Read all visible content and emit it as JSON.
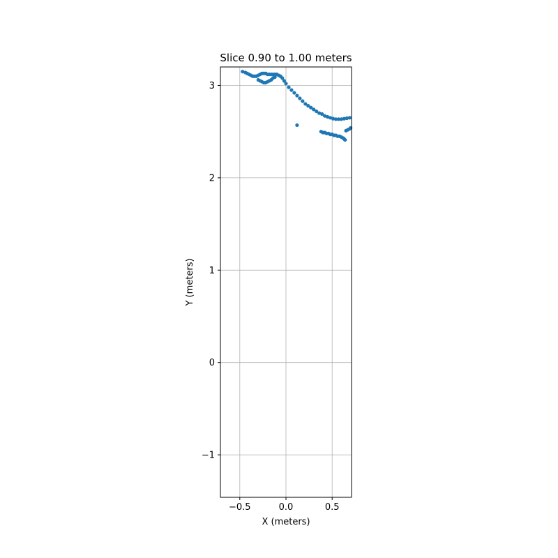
{
  "chart_data": {
    "type": "scatter",
    "title": "Slice 0.90 to 1.00 meters",
    "xlabel": "X (meters)",
    "ylabel": "Y (meters)",
    "xlim": [
      -0.71,
      0.71
    ],
    "ylim": [
      -1.46,
      3.2
    ],
    "xticks": [
      -0.5,
      0.0,
      0.5
    ],
    "xtick_labels": [
      "−0.5",
      "0.0",
      "0.5"
    ],
    "yticks": [
      -1,
      0,
      1,
      2,
      3
    ],
    "ytick_labels": [
      "−1",
      "0",
      "1",
      "2",
      "3"
    ],
    "grid": true,
    "legend": "none",
    "marker_color": "#1f77b4",
    "series": [
      {
        "values": [
          [
            -0.47,
            3.15
          ],
          [
            -0.44,
            3.14
          ],
          [
            -0.42,
            3.13
          ],
          [
            -0.4,
            3.12
          ],
          [
            -0.38,
            3.11
          ],
          [
            -0.36,
            3.1
          ],
          [
            -0.34,
            3.1
          ],
          [
            -0.32,
            3.1
          ],
          [
            -0.3,
            3.11
          ],
          [
            -0.28,
            3.12
          ],
          [
            -0.26,
            3.13
          ],
          [
            -0.24,
            3.13
          ],
          [
            -0.22,
            3.13
          ],
          [
            -0.2,
            3.12
          ],
          [
            -0.18,
            3.12
          ],
          [
            -0.16,
            3.12
          ],
          [
            -0.14,
            3.12
          ],
          [
            -0.12,
            3.12
          ],
          [
            -0.1,
            3.12
          ],
          [
            -0.08,
            3.11
          ],
          [
            -0.06,
            3.1
          ],
          [
            -0.04,
            3.08
          ],
          [
            -0.02,
            3.05
          ],
          [
            0.0,
            3.02
          ],
          [
            0.03,
            2.98
          ],
          [
            0.06,
            2.95
          ],
          [
            0.09,
            2.92
          ],
          [
            0.12,
            2.89
          ],
          [
            0.15,
            2.86
          ],
          [
            0.18,
            2.83
          ],
          [
            0.21,
            2.8
          ],
          [
            0.24,
            2.78
          ],
          [
            0.27,
            2.76
          ],
          [
            0.3,
            2.74
          ],
          [
            0.33,
            2.72
          ],
          [
            0.36,
            2.7
          ],
          [
            0.39,
            2.69
          ],
          [
            0.42,
            2.67
          ],
          [
            0.45,
            2.66
          ],
          [
            0.48,
            2.65
          ],
          [
            0.51,
            2.64
          ],
          [
            0.54,
            2.635
          ],
          [
            0.57,
            2.635
          ],
          [
            0.6,
            2.635
          ],
          [
            0.63,
            2.64
          ],
          [
            0.66,
            2.645
          ],
          [
            0.69,
            2.65
          ],
          [
            -0.3,
            3.06
          ],
          [
            -0.28,
            3.05
          ],
          [
            -0.26,
            3.04
          ],
          [
            -0.24,
            3.03
          ],
          [
            -0.22,
            3.03
          ],
          [
            -0.2,
            3.04
          ],
          [
            -0.18,
            3.05
          ],
          [
            -0.16,
            3.06
          ],
          [
            -0.14,
            3.08
          ],
          [
            -0.12,
            3.09
          ],
          [
            0.12,
            2.57
          ],
          [
            0.38,
            2.5
          ],
          [
            0.4,
            2.49
          ],
          [
            0.42,
            2.49
          ],
          [
            0.44,
            2.48
          ],
          [
            0.46,
            2.48
          ],
          [
            0.48,
            2.47
          ],
          [
            0.5,
            2.47
          ],
          [
            0.52,
            2.46
          ],
          [
            0.54,
            2.46
          ],
          [
            0.56,
            2.45
          ],
          [
            0.58,
            2.45
          ],
          [
            0.6,
            2.44
          ],
          [
            0.62,
            2.43
          ],
          [
            0.63,
            2.42
          ],
          [
            0.64,
            2.41
          ],
          [
            0.65,
            2.51
          ],
          [
            0.67,
            2.52
          ],
          [
            0.69,
            2.53
          ],
          [
            0.7,
            2.54
          ]
        ]
      }
    ]
  }
}
